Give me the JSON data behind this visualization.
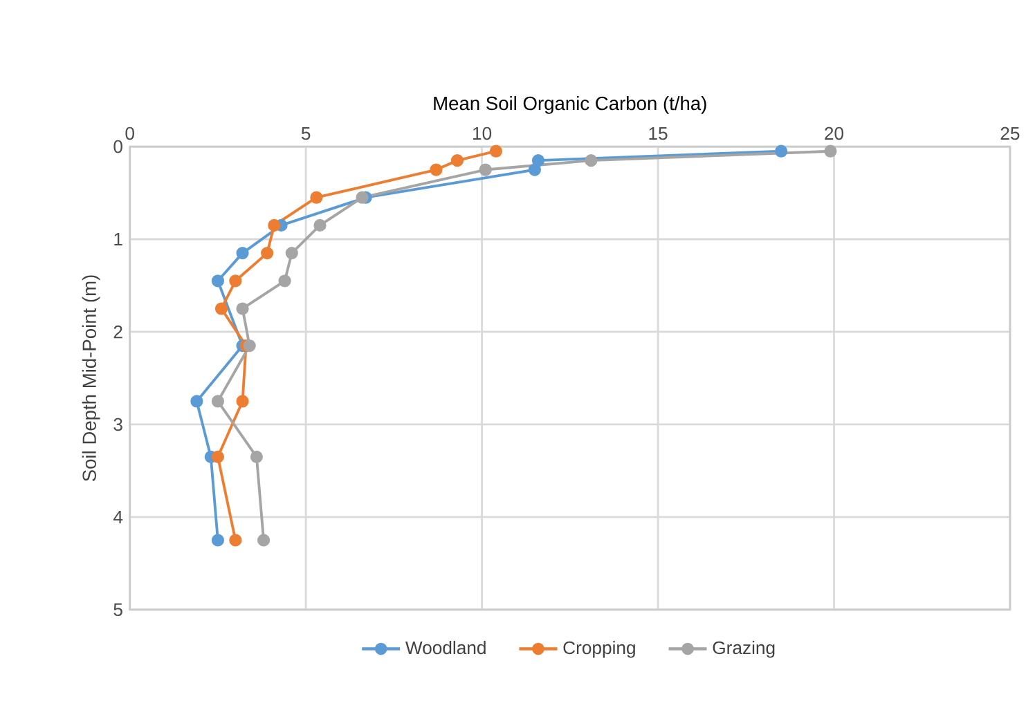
{
  "chart_data": {
    "type": "line",
    "xlabel": "Mean Soil Organic Carbon (t/ha)",
    "ylabel": "Soil Depth Mid-Point (m)",
    "xlim": [
      0,
      25
    ],
    "xticks": [
      0,
      5,
      10,
      15,
      20,
      25
    ],
    "ylim": [
      5,
      0
    ],
    "yticks": [
      0,
      1,
      2,
      3,
      4,
      5
    ],
    "grid": true,
    "legend": "bottom",
    "marker": "circle",
    "line_style": "solid",
    "series": [
      {
        "name": "Woodland",
        "color": "#5b9bd5",
        "x": [
          18.5,
          11.6,
          11.5,
          6.7,
          4.3,
          3.2,
          2.5,
          null,
          3.2,
          1.9,
          2.3,
          2.5
        ],
        "values": [
          0.05,
          0.15,
          0.25,
          0.55,
          0.85,
          1.15,
          1.45,
          null,
          2.15,
          2.75,
          3.35,
          4.25
        ]
      },
      {
        "name": "Cropping",
        "color": "#ed7d31",
        "x": [
          10.4,
          9.3,
          8.7,
          5.3,
          4.1,
          3.9,
          3.0,
          2.6,
          3.3,
          3.2,
          2.5,
          3.0
        ],
        "values": [
          0.05,
          0.15,
          0.25,
          0.55,
          0.85,
          1.15,
          1.45,
          1.75,
          2.15,
          2.75,
          3.35,
          4.25
        ]
      },
      {
        "name": "Grazing",
        "color": "#a5a5a5",
        "x": [
          19.9,
          13.1,
          10.1,
          6.6,
          5.4,
          4.6,
          4.4,
          3.2,
          3.4,
          2.5,
          3.6,
          3.8
        ],
        "values": [
          0.05,
          0.15,
          0.25,
          0.55,
          0.85,
          1.15,
          1.45,
          1.75,
          2.15,
          2.75,
          3.35,
          4.25
        ]
      }
    ]
  }
}
